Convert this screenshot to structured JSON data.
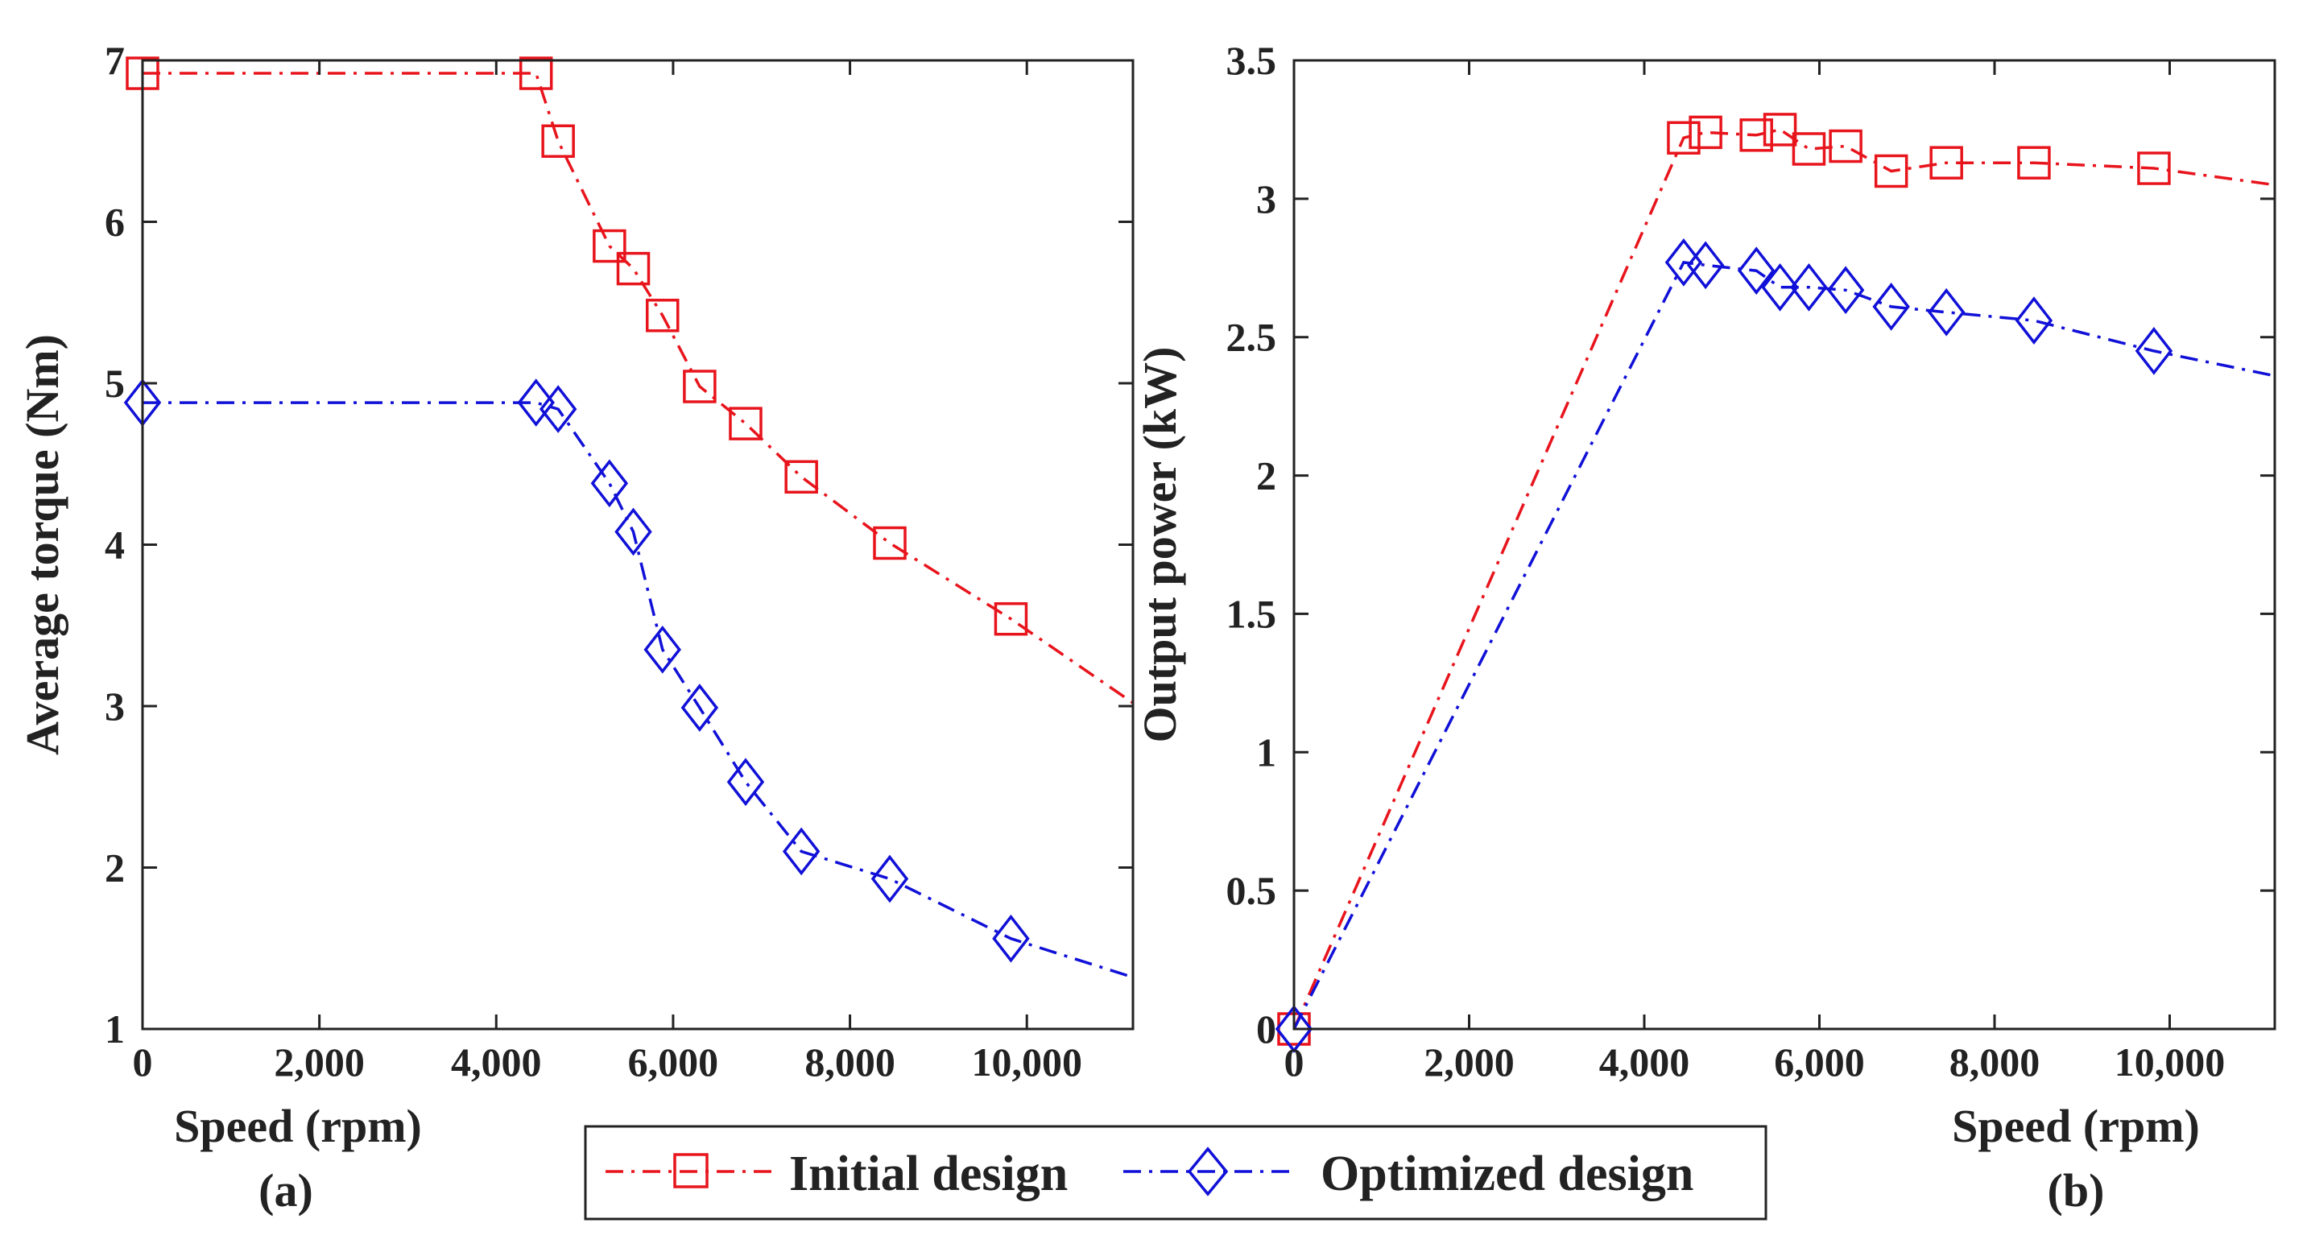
{
  "colors": {
    "initial": "#e8141c",
    "optimized": "#1010d8",
    "axis": "#222222"
  },
  "legend": {
    "items": [
      {
        "label": "Initial design",
        "marker": "square",
        "color": "#e8141c"
      },
      {
        "label": "Optimized design",
        "marker": "diamond",
        "color": "#1010d8"
      }
    ],
    "placement": "bottom-center"
  },
  "chart_data": [
    {
      "type": "line",
      "panel_label": "(a)",
      "xlabel": "Speed (rpm)",
      "ylabel": "Average torque (Nm)",
      "xlim": [
        0,
        11200
      ],
      "ylim": [
        1,
        7
      ],
      "xticks": [
        0,
        2000,
        4000,
        6000,
        8000,
        10000
      ],
      "xtick_labels": [
        "0",
        "2,000",
        "4,000",
        "6,000",
        "8,000",
        "10,000"
      ],
      "yticks": [
        1,
        2,
        3,
        4,
        5,
        6,
        7
      ],
      "ytick_labels": [
        "1",
        "2",
        "3",
        "4",
        "5",
        "6",
        "7"
      ],
      "grid": false,
      "series": [
        {
          "name": "Initial design",
          "marker": "square",
          "x": [
            0,
            4450,
            4700,
            5280,
            5550,
            5880,
            6300,
            6820,
            7450,
            8450,
            9820,
            11200
          ],
          "y": [
            6.92,
            6.92,
            6.5,
            5.85,
            5.71,
            5.42,
            4.98,
            4.75,
            4.42,
            4.01,
            3.54,
            3.02
          ],
          "marked": [
            true,
            true,
            true,
            true,
            true,
            true,
            true,
            true,
            true,
            true,
            true,
            false
          ]
        },
        {
          "name": "Optimized design",
          "marker": "diamond",
          "x": [
            0,
            4450,
            4700,
            5280,
            5550,
            5880,
            6300,
            6820,
            7450,
            8450,
            9820,
            11200
          ],
          "y": [
            4.88,
            4.88,
            4.84,
            4.38,
            4.08,
            3.35,
            2.99,
            2.53,
            2.1,
            1.93,
            1.56,
            1.32
          ],
          "marked": [
            true,
            true,
            true,
            true,
            true,
            true,
            true,
            true,
            true,
            true,
            true,
            false
          ]
        }
      ]
    },
    {
      "type": "line",
      "panel_label": "(b)",
      "xlabel": "Speed (rpm)",
      "ylabel": "Output power (kW)",
      "xlim": [
        0,
        11200
      ],
      "ylim": [
        0,
        3.5
      ],
      "xticks": [
        0,
        2000,
        4000,
        6000,
        8000,
        10000
      ],
      "xtick_labels": [
        "0",
        "2,000",
        "4,000",
        "6,000",
        "8,000",
        "10,000"
      ],
      "yticks": [
        0,
        0.5,
        1,
        1.5,
        2,
        2.5,
        3,
        3.5
      ],
      "ytick_labels": [
        "0",
        "0.5",
        "1",
        "1.5",
        "2",
        "2.5",
        "3",
        "3.5"
      ],
      "grid": false,
      "series": [
        {
          "name": "Initial design",
          "marker": "square",
          "x": [
            0,
            4450,
            4700,
            5280,
            5550,
            5880,
            6300,
            6820,
            7450,
            8450,
            9820,
            11200
          ],
          "y": [
            0,
            3.22,
            3.24,
            3.23,
            3.25,
            3.18,
            3.19,
            3.1,
            3.13,
            3.13,
            3.11,
            3.05
          ],
          "marked": [
            true,
            true,
            true,
            true,
            true,
            true,
            true,
            true,
            true,
            true,
            true,
            false
          ]
        },
        {
          "name": "Optimized design",
          "marker": "diamond",
          "x": [
            0,
            4450,
            4700,
            5280,
            5550,
            5880,
            6300,
            6820,
            7450,
            8450,
            9820,
            11200
          ],
          "y": [
            0,
            2.77,
            2.76,
            2.74,
            2.68,
            2.68,
            2.67,
            2.61,
            2.59,
            2.56,
            2.45,
            2.36
          ],
          "marked": [
            true,
            true,
            true,
            true,
            true,
            true,
            true,
            true,
            true,
            true,
            true,
            false
          ]
        }
      ]
    }
  ]
}
